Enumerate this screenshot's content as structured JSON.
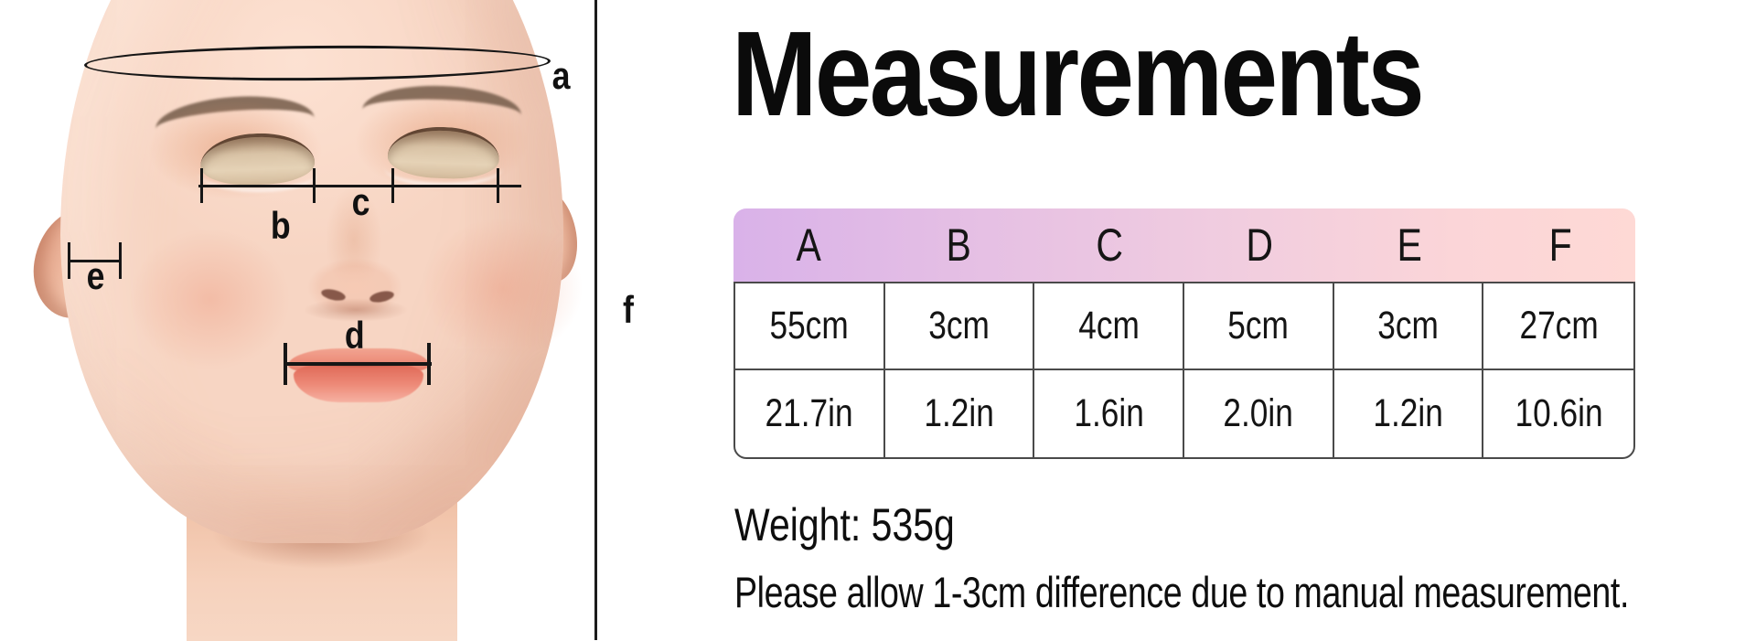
{
  "title": "Measurements",
  "figure": {
    "labels": {
      "a": "a",
      "b": "b",
      "c": "c",
      "d": "d",
      "e": "e",
      "f": "f"
    }
  },
  "table": {
    "headers": [
      "A",
      "B",
      "C",
      "D",
      "E",
      "F"
    ],
    "rows": [
      [
        "55cm",
        "3cm",
        "4cm",
        "5cm",
        "3cm",
        "27cm"
      ],
      [
        "21.7in",
        "1.2in",
        "1.6in",
        "2.0in",
        "1.2in",
        "10.6in"
      ]
    ]
  },
  "weight_text": "Weight: 535g",
  "note_text": "Please allow 1-3cm difference due to manual measurement.",
  "colors": {
    "header_gradient_start": "#d9b2e9",
    "header_gradient_end": "#fed9d5",
    "table_border": "#4a4a4a",
    "annotation_line": "#161616",
    "skin_tone": "#f5cfba",
    "lip_color": "#e87a67",
    "background": "#ffffff"
  }
}
